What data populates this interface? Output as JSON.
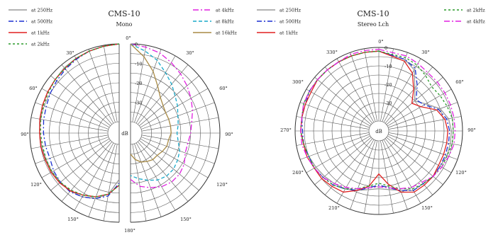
{
  "chart_data": [
    {
      "type": "polar",
      "title": "CMS-10",
      "subtitle": "Mono",
      "radial_unit": "dB",
      "radial_ticks": [
        "0",
        "-10",
        "-20",
        "-30"
      ],
      "radial_range": [
        -40,
        0
      ],
      "angle_labels": [
        "0°",
        "30°",
        "60°",
        "90°",
        "120°",
        "150°",
        "180°",
        "30°",
        "60°",
        "90°",
        "120°",
        "150°"
      ],
      "grid": true,
      "legend_left": [
        "at 250Hz",
        "at 500Hz",
        "at 1kHz",
        "at 2kHz"
      ],
      "legend_right": [
        "at 4kHz",
        "at 8kHz",
        "at 16kHz"
      ],
      "series": [
        {
          "name": "at 250Hz",
          "color": "#9a9a9a",
          "dash": "",
          "side": "left",
          "angles": [
            0,
            10,
            20,
            30,
            40,
            50,
            60,
            70,
            80,
            90,
            100,
            110,
            120,
            130,
            140,
            150,
            160,
            170,
            180
          ],
          "values": [
            0,
            -0.5,
            -1,
            -1.5,
            -2,
            -3,
            -3.5,
            -4,
            -4.5,
            -5,
            -5.5,
            -6,
            -6,
            -6.5,
            -7,
            -8,
            -10,
            -14,
            -22
          ]
        },
        {
          "name": "at 500Hz",
          "color": "#1a2fd0",
          "dash": "7 3 2 3",
          "side": "left",
          "angles": [
            0,
            10,
            20,
            30,
            40,
            50,
            60,
            70,
            80,
            90,
            100,
            110,
            120,
            130,
            140,
            150,
            160,
            170,
            180
          ],
          "values": [
            0,
            -0.5,
            -1,
            -2,
            -3,
            -4,
            -5,
            -6,
            -6.5,
            -7,
            -7.5,
            -8,
            -7,
            -6.5,
            -6.5,
            -8,
            -10,
            -13,
            -20
          ]
        },
        {
          "name": "at 1kHz",
          "color": "#e02020",
          "dash": "",
          "side": "left",
          "angles": [
            0,
            10,
            20,
            30,
            40,
            50,
            60,
            70,
            80,
            90,
            100,
            110,
            120,
            130,
            140,
            150,
            160,
            170,
            180
          ],
          "values": [
            0,
            -0.5,
            -1,
            -1.5,
            -2.5,
            -3,
            -3.5,
            -4,
            -4.5,
            -5,
            -5,
            -5.5,
            -5.5,
            -6,
            -7,
            -9,
            -11,
            -14,
            -19
          ]
        },
        {
          "name": "at 2kHz",
          "color": "#2a9a2a",
          "dash": "3 3",
          "side": "left",
          "angles": [
            0,
            10,
            20,
            30,
            40,
            50,
            60,
            70,
            80,
            90,
            100,
            110,
            120,
            130,
            140,
            150,
            160,
            170,
            180
          ],
          "values": [
            0,
            -0.5,
            -1,
            -1.5,
            -2.5,
            -3,
            -4,
            -4.5,
            -5,
            -5.5,
            -6,
            -6,
            -6,
            -6.5,
            -7.5,
            -9,
            -11,
            -14,
            -19
          ]
        },
        {
          "name": "at 4kHz",
          "color": "#e020e0",
          "dash": "8 3 2 3",
          "side": "right",
          "angles": [
            0,
            10,
            20,
            30,
            40,
            50,
            60,
            70,
            80,
            90,
            100,
            110,
            120,
            130,
            140,
            150,
            160,
            170,
            180
          ],
          "values": [
            0,
            -1,
            -2,
            -4,
            -6,
            -8,
            -10,
            -12,
            -14,
            -15,
            -16,
            -16,
            -14,
            -13,
            -13,
            -14,
            -16,
            -18,
            -22
          ]
        },
        {
          "name": "at 8kHz",
          "color": "#19a9c9",
          "dash": "5 3",
          "side": "right",
          "angles": [
            0,
            10,
            20,
            30,
            40,
            50,
            60,
            70,
            80,
            90,
            100,
            110,
            120,
            130,
            140,
            150,
            160,
            170,
            180
          ],
          "values": [
            0,
            -3,
            -6,
            -10,
            -13,
            -16,
            -18,
            -20,
            -21,
            -22,
            -21,
            -19,
            -18,
            -17,
            -17,
            -18,
            -20,
            -22,
            -24
          ]
        },
        {
          "name": "at 16kHz",
          "color": "#a88a45",
          "dash": "",
          "side": "right",
          "angles": [
            0,
            10,
            20,
            30,
            40,
            50,
            60,
            70,
            80,
            90,
            100,
            110,
            120,
            130,
            140,
            150,
            160,
            170,
            180
          ],
          "values": [
            0,
            -6,
            -12,
            -18,
            -22,
            -24,
            -25,
            -25,
            -25,
            -25,
            -26,
            -26,
            -27,
            -28,
            -28,
            -29,
            -30,
            -32,
            -35
          ]
        }
      ]
    },
    {
      "type": "polar",
      "title": "CMS-10",
      "subtitle": "Stereo Lch",
      "radial_unit": "dB",
      "radial_ticks": [
        "0",
        "-10",
        "-20",
        "-30"
      ],
      "radial_range": [
        -40,
        0
      ],
      "angle_labels": [
        "0°",
        "30°",
        "60°",
        "90°",
        "120°",
        "150°",
        "210°",
        "240°",
        "270°",
        "300°",
        "330°"
      ],
      "grid": true,
      "legend_left": [
        "at 250Hz",
        "at 500Hz",
        "at 1kHz"
      ],
      "legend_right": [
        "at 2kHz",
        "at 4kHz"
      ],
      "series": [
        {
          "name": "at 250Hz",
          "color": "#9a9a9a",
          "dash": "",
          "angles": [
            0,
            20,
            30,
            40,
            50,
            60,
            70,
            80,
            90,
            100,
            110,
            120,
            130,
            140,
            150,
            160,
            170,
            180,
            190,
            200,
            210,
            220,
            230,
            240,
            250,
            260,
            270,
            280,
            290,
            300,
            310,
            320,
            330,
            340,
            350,
            360
          ],
          "values": [
            -2,
            -4,
            -7,
            -15,
            -20,
            -16,
            -10,
            -7,
            -6,
            -6,
            -6,
            -7,
            -7,
            -8,
            -8,
            -11,
            -13,
            -14,
            -13,
            -11,
            -9,
            -8,
            -7,
            -6,
            -5,
            -4,
            -3,
            -3,
            -2,
            -2,
            -2,
            -2,
            -2,
            -2,
            -2,
            -2
          ]
        },
        {
          "name": "at 500Hz",
          "color": "#1a2fd0",
          "dash": "7 3 2 3",
          "angles": [
            0,
            20,
            30,
            40,
            50,
            60,
            70,
            80,
            90,
            100,
            110,
            120,
            130,
            140,
            150,
            160,
            170,
            180,
            190,
            200,
            210,
            220,
            230,
            240,
            250,
            260,
            270,
            280,
            290,
            300,
            310,
            320,
            330,
            340,
            350,
            360
          ],
          "values": [
            -2,
            -4,
            -6,
            -13,
            -19,
            -17,
            -11,
            -8,
            -7,
            -7,
            -7,
            -7,
            -7,
            -8,
            -8,
            -11,
            -14,
            -16,
            -14,
            -11,
            -9,
            -7,
            -6,
            -5,
            -5,
            -4,
            -4,
            -3,
            -3,
            -2,
            -2,
            -2,
            -2,
            -2,
            -2,
            -2
          ]
        },
        {
          "name": "at 1kHz",
          "color": "#e02020",
          "dash": "",
          "angles": [
            0,
            20,
            30,
            40,
            50,
            60,
            70,
            80,
            90,
            100,
            110,
            120,
            130,
            140,
            150,
            160,
            170,
            180,
            190,
            200,
            210,
            220,
            230,
            240,
            250,
            260,
            270,
            280,
            290,
            300,
            310,
            320,
            330,
            340,
            350,
            360
          ],
          "values": [
            -2,
            -5,
            -9,
            -16,
            -22,
            -19,
            -12,
            -9,
            -8,
            -8,
            -8,
            -8,
            -7,
            -7,
            -7,
            -10,
            -16,
            -22,
            -15,
            -11,
            -7,
            -6,
            -5,
            -5,
            -4,
            -4,
            -3,
            -3,
            -3,
            -3,
            -2,
            -2,
            -2,
            -2,
            -2,
            -2
          ]
        },
        {
          "name": "at 2kHz",
          "color": "#2a9a2a",
          "dash": "3 3",
          "angles": [
            0,
            20,
            30,
            40,
            50,
            60,
            70,
            80,
            90,
            100,
            110,
            120,
            130,
            140,
            150,
            160,
            170,
            180,
            190,
            200,
            210,
            220,
            230,
            240,
            250,
            260,
            270,
            280,
            290,
            300,
            310,
            320,
            330,
            340,
            350,
            360
          ],
          "values": [
            -2,
            -3,
            -4,
            -6,
            -8,
            -7,
            -6,
            -5,
            -5,
            -5,
            -6,
            -6,
            -7,
            -8,
            -9,
            -12,
            -15,
            -17,
            -15,
            -12,
            -9,
            -7,
            -6,
            -5,
            -5,
            -4,
            -3,
            -3,
            -2,
            -2,
            -2,
            -2,
            -2,
            -2,
            -2,
            -2
          ]
        },
        {
          "name": "at 4kHz",
          "color": "#e020e0",
          "dash": "8 3 2 3",
          "angles": [
            0,
            20,
            30,
            40,
            50,
            60,
            70,
            80,
            90,
            100,
            110,
            120,
            130,
            140,
            150,
            160,
            170,
            180,
            190,
            200,
            210,
            220,
            230,
            240,
            250,
            260,
            270,
            280,
            290,
            300,
            310,
            320,
            330,
            340,
            350,
            360
          ],
          "values": [
            -1,
            -2,
            -3,
            -4,
            -4,
            -4,
            -4,
            -4,
            -4,
            -4,
            -5,
            -6,
            -7,
            -9,
            -10,
            -12,
            -14,
            -15,
            -14,
            -12,
            -10,
            -8,
            -6,
            -5,
            -4,
            -3,
            -3,
            -3,
            -2,
            -2,
            -2,
            -2,
            -2,
            -1,
            -1,
            -1
          ]
        }
      ]
    }
  ]
}
